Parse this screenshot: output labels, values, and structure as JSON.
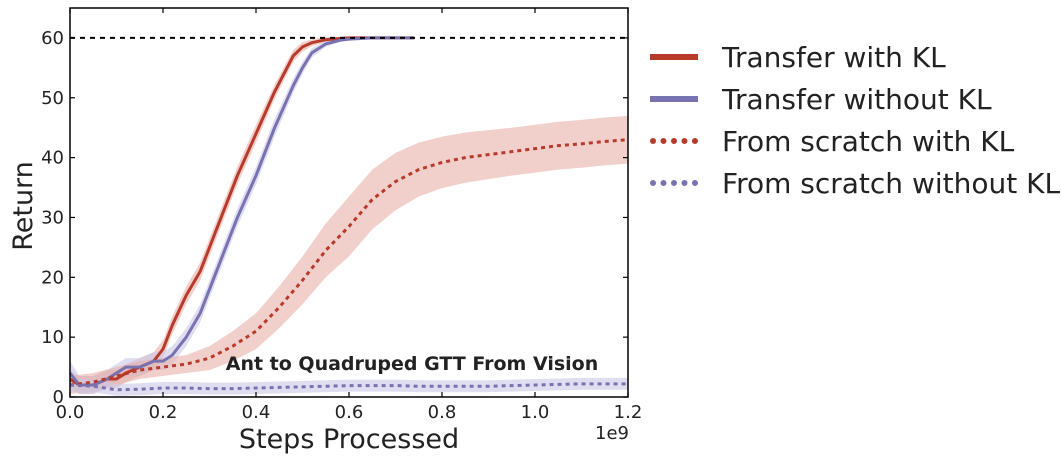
{
  "chart_data": {
    "type": "line",
    "title": "Ant to Quadruped GTT From Vision",
    "xlabel": "Steps Processed",
    "ylabel": "Return",
    "x_multiplier_label": "1e9",
    "xlim": [
      0.0,
      1.2
    ],
    "ylim": [
      0,
      65
    ],
    "x_ticks": [
      "0.0",
      "0.2",
      "0.4",
      "0.6",
      "0.8",
      "1.0",
      "1.2"
    ],
    "y_ticks": [
      "0",
      "10",
      "20",
      "30",
      "40",
      "50",
      "60"
    ],
    "grid": false,
    "legend_position": "outside-right",
    "reference_line": {
      "y": 60,
      "style": "dashed",
      "color": "#000000"
    },
    "series": [
      {
        "name": "Transfer with KL",
        "color": "#b83a2a",
        "band_color": "#e8b1aa",
        "style": "solid",
        "x": [
          0.0,
          0.02,
          0.05,
          0.08,
          0.1,
          0.12,
          0.15,
          0.18,
          0.2,
          0.22,
          0.25,
          0.28,
          0.3,
          0.33,
          0.36,
          0.4,
          0.44,
          0.48,
          0.5,
          0.52,
          0.55,
          0.58,
          0.6,
          0.65,
          0.7,
          0.74
        ],
        "y": [
          3,
          2,
          2,
          3,
          3,
          4,
          5,
          6,
          8,
          12,
          17,
          21,
          25,
          31,
          37,
          44,
          51,
          57,
          58.5,
          59.2,
          59.7,
          59.9,
          60,
          60,
          60,
          60
        ],
        "band": [
          1.5,
          1.5,
          1.5,
          1.5,
          1.5,
          1.5,
          1.5,
          1.5,
          1.5,
          1.5,
          1.5,
          1.5,
          1.5,
          1.5,
          1.5,
          1.5,
          1.2,
          1,
          0.8,
          0.6,
          0.4,
          0.3,
          0.2,
          0.1,
          0.1,
          0.1
        ]
      },
      {
        "name": "Transfer without KL",
        "color": "#7872b0",
        "band_color": "#c9c8e8",
        "style": "solid",
        "x": [
          0.0,
          0.02,
          0.05,
          0.08,
          0.1,
          0.12,
          0.15,
          0.18,
          0.2,
          0.22,
          0.25,
          0.28,
          0.3,
          0.33,
          0.36,
          0.4,
          0.44,
          0.48,
          0.5,
          0.52,
          0.55,
          0.58,
          0.6,
          0.65,
          0.7,
          0.74
        ],
        "y": [
          4,
          2,
          2,
          3,
          4,
          5,
          5,
          6,
          6,
          7,
          10,
          14,
          18,
          24,
          30,
          37,
          45,
          52,
          55,
          57.5,
          59,
          59.6,
          59.8,
          60,
          60,
          60
        ],
        "band": [
          2,
          1.5,
          1.5,
          1.5,
          1.5,
          1.5,
          1.5,
          1.5,
          1.5,
          1.5,
          1.5,
          1.5,
          1.5,
          1.5,
          1.5,
          1.5,
          1.5,
          1.2,
          1,
          0.8,
          0.5,
          0.3,
          0.2,
          0.1,
          0.1,
          0.1
        ]
      },
      {
        "name": "From scratch with KL",
        "color": "#b83a2a",
        "band_color": "#e8b1aa",
        "style": "dotted",
        "x": [
          0.0,
          0.05,
          0.1,
          0.15,
          0.2,
          0.25,
          0.3,
          0.35,
          0.4,
          0.45,
          0.5,
          0.55,
          0.6,
          0.65,
          0.7,
          0.75,
          0.8,
          0.85,
          0.9,
          0.95,
          1.0,
          1.05,
          1.1,
          1.15,
          1.2
        ],
        "y": [
          2,
          2.5,
          3.5,
          4.5,
          5,
          5.5,
          6.5,
          8.5,
          11,
          15,
          19.5,
          24.5,
          28.5,
          33,
          36,
          38,
          39.2,
          40,
          40.5,
          41,
          41.5,
          42,
          42.3,
          42.7,
          43
        ],
        "band": [
          1.5,
          1.5,
          1.5,
          1.5,
          1.5,
          1.5,
          2,
          2.5,
          3,
          3.5,
          4,
          4.5,
          5,
          5,
          4.8,
          4.5,
          4.3,
          4.2,
          4.1,
          4,
          4,
          4,
          4,
          4,
          4
        ]
      },
      {
        "name": "From scratch without KL",
        "color": "#7872b0",
        "band_color": "#c9c8e8",
        "style": "dotted",
        "x": [
          0.0,
          0.05,
          0.1,
          0.15,
          0.2,
          0.25,
          0.3,
          0.35,
          0.4,
          0.45,
          0.5,
          0.55,
          0.6,
          0.65,
          0.7,
          0.75,
          0.8,
          0.85,
          0.9,
          0.95,
          1.0,
          1.05,
          1.1,
          1.15,
          1.2
        ],
        "y": [
          2,
          1.8,
          1.2,
          1.3,
          1.5,
          1.5,
          1.4,
          1.4,
          1.5,
          1.6,
          1.7,
          1.8,
          1.9,
          1.9,
          1.9,
          1.8,
          1.8,
          1.8,
          1.8,
          1.9,
          2,
          2.1,
          2.2,
          2.2,
          2.2
        ],
        "band": [
          1.2,
          1,
          1,
          1,
          1,
          1,
          1,
          1,
          1,
          1,
          1,
          1,
          1,
          1,
          1,
          1,
          1,
          1,
          1,
          1,
          1,
          1,
          1,
          1,
          1
        ]
      }
    ]
  }
}
